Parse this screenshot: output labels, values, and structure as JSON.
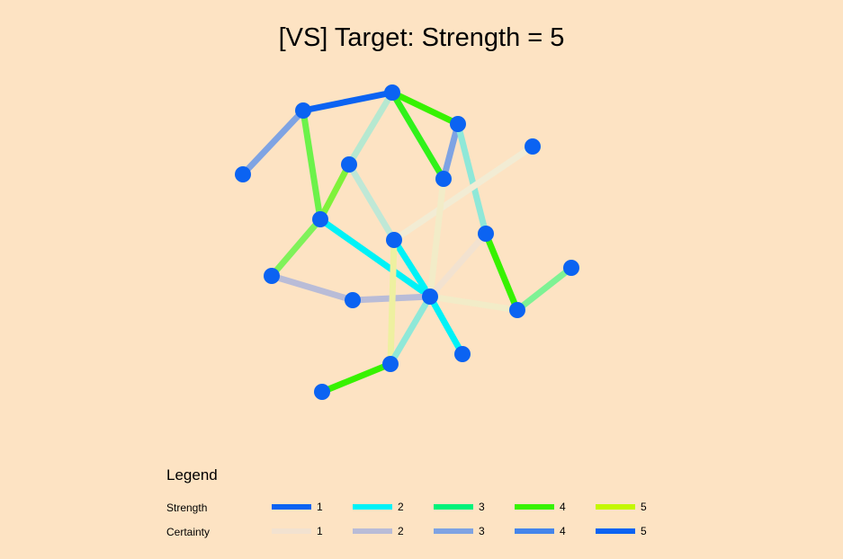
{
  "title": "[VS] Target: Strength = 5",
  "legend": {
    "title": "Legend",
    "strength_label": "Strength",
    "certainty_label": "Certainty",
    "strength": [
      {
        "value": "1",
        "color": "#0b63f2"
      },
      {
        "value": "2",
        "color": "#00f2f7"
      },
      {
        "value": "3",
        "color": "#00f27a"
      },
      {
        "value": "4",
        "color": "#37f200"
      },
      {
        "value": "5",
        "color": "#c4f700"
      }
    ],
    "certainty": [
      {
        "value": "1",
        "color": "#f2e2d0"
      },
      {
        "value": "2",
        "color": "#b9bcd7"
      },
      {
        "value": "3",
        "color": "#7ea3e3"
      },
      {
        "value": "4",
        "color": "#4485eb"
      },
      {
        "value": "5",
        "color": "#0b63f2"
      }
    ]
  },
  "graph": {
    "node_color": "#0b63f2",
    "nodes": [
      {
        "id": "n0"
      },
      {
        "id": "n1"
      },
      {
        "id": "n2"
      },
      {
        "id": "n3"
      },
      {
        "id": "n4"
      },
      {
        "id": "n5"
      },
      {
        "id": "n6"
      },
      {
        "id": "n7"
      },
      {
        "id": "n8"
      },
      {
        "id": "n9"
      },
      {
        "id": "n10"
      },
      {
        "id": "n11"
      },
      {
        "id": "n12"
      },
      {
        "id": "n13"
      },
      {
        "id": "n14"
      },
      {
        "id": "n15"
      },
      {
        "id": "n16"
      },
      {
        "id": "n17"
      }
    ],
    "edges": [
      {
        "source": "n0",
        "target": "n1",
        "color": "#0b63f2"
      },
      {
        "source": "n1",
        "target": "n3",
        "color": "#7ea3e3"
      },
      {
        "source": "n0",
        "target": "n2",
        "color": "#37f200"
      },
      {
        "source": "n0",
        "target": "n6",
        "color": "#2ff21a"
      },
      {
        "source": "n0",
        "target": "n7",
        "color": "#b6e8d0"
      },
      {
        "source": "n1",
        "target": "n8",
        "color": "#6cf24a"
      },
      {
        "source": "n2",
        "target": "n6",
        "color": "#7ea3e3"
      },
      {
        "source": "n2",
        "target": "n10",
        "color": "#8fe8d8"
      },
      {
        "source": "n4",
        "target": "n11",
        "color": "#f2ecd4"
      },
      {
        "source": "n7",
        "target": "n8",
        "color": "#7ff23a"
      },
      {
        "source": "n8",
        "target": "n9",
        "color": "#7ff25a"
      },
      {
        "source": "n7",
        "target": "n11",
        "color": "#bfe8d6"
      },
      {
        "source": "n8",
        "target": "n13",
        "color": "#00f2f7"
      },
      {
        "source": "n11",
        "target": "n13",
        "color": "#00f2f7"
      },
      {
        "source": "n9",
        "target": "n12",
        "color": "#b9bcd7"
      },
      {
        "source": "n12",
        "target": "n13",
        "color": "#b9bcd7"
      },
      {
        "source": "n10",
        "target": "n14",
        "color": "#37f200"
      },
      {
        "source": "n14",
        "target": "n5",
        "color": "#7ef294"
      },
      {
        "source": "n6",
        "target": "n13",
        "color": "#f2ecc8"
      },
      {
        "source": "n10",
        "target": "n13",
        "color": "#f2e2d0"
      },
      {
        "source": "n11",
        "target": "n16",
        "color": "#eef0a0"
      },
      {
        "source": "n13",
        "target": "n16",
        "color": "#8fe8d8"
      },
      {
        "source": "n13",
        "target": "n15",
        "color": "#00f2f7"
      },
      {
        "source": "n13",
        "target": "n14",
        "color": "#f2ecc8"
      },
      {
        "source": "n16",
        "target": "n17",
        "color": "#37f200"
      }
    ]
  }
}
